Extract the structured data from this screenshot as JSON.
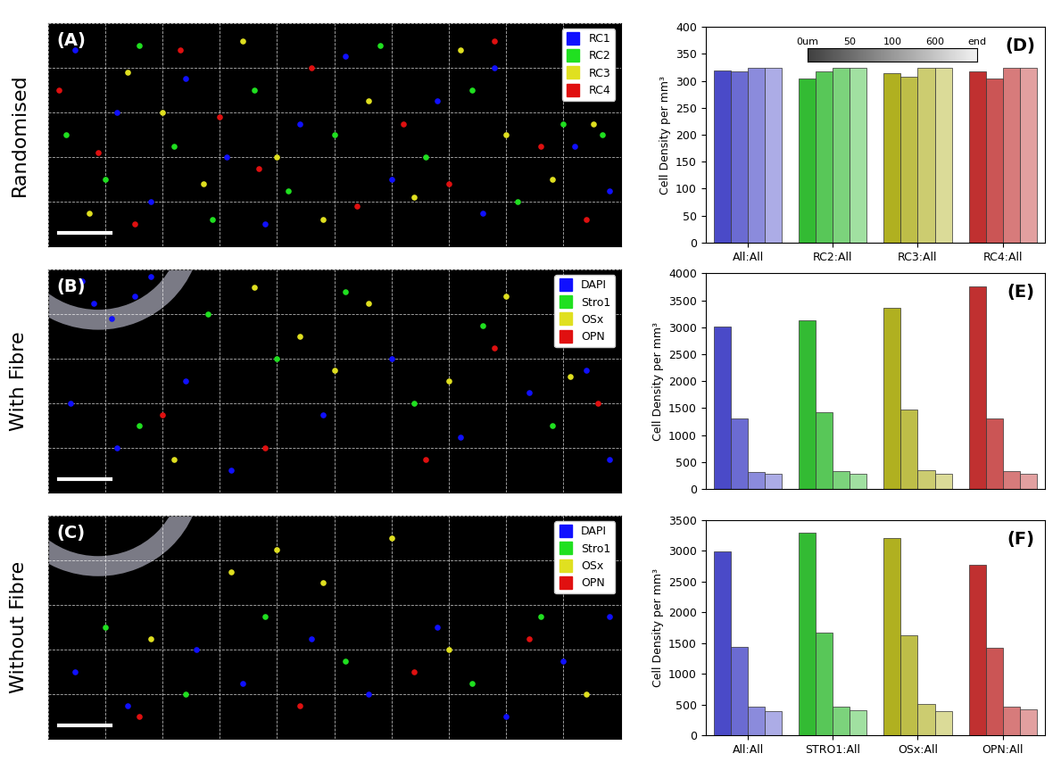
{
  "chart_data": [
    {
      "type": "scatter",
      "panel_label": "(A)",
      "row_label": "Randomised",
      "xlim": [
        0,
        250
      ],
      "ylim": [
        0,
        100
      ],
      "xticks": [
        0,
        25,
        50,
        75,
        100,
        125,
        150,
        175,
        200,
        225,
        250
      ],
      "yticks": [
        0,
        20,
        40,
        60,
        80,
        100
      ],
      "grid": true,
      "tick_labels": false,
      "legend": "upper right",
      "series": [
        {
          "name": "RC1",
          "color": "#1010ff",
          "x": [
            12,
            30,
            45,
            60,
            78,
            95,
            110,
            130,
            150,
            170,
            190,
            195,
            230,
            245
          ],
          "values": [
            88,
            60,
            20,
            75,
            40,
            10,
            55,
            85,
            30,
            65,
            15,
            80,
            45,
            25
          ]
        },
        {
          "name": "RC2",
          "color": "#20e020",
          "x": [
            8,
            25,
            40,
            55,
            72,
            90,
            105,
            125,
            145,
            165,
            185,
            205,
            225,
            242
          ],
          "values": [
            50,
            30,
            90,
            45,
            12,
            70,
            25,
            50,
            90,
            40,
            70,
            20,
            55,
            50
          ]
        },
        {
          "name": "RC3",
          "color": "#e0e020",
          "x": [
            18,
            35,
            50,
            68,
            85,
            100,
            120,
            140,
            160,
            180,
            200,
            220,
            238
          ],
          "values": [
            15,
            78,
            60,
            28,
            92,
            40,
            12,
            65,
            22,
            88,
            50,
            30,
            55
          ]
        },
        {
          "name": "RC4",
          "color": "#e01010",
          "x": [
            5,
            22,
            38,
            58,
            75,
            92,
            115,
            135,
            155,
            175,
            195,
            215,
            235
          ],
          "values": [
            70,
            42,
            10,
            88,
            58,
            35,
            80,
            18,
            55,
            28,
            92,
            45,
            12
          ]
        }
      ]
    },
    {
      "type": "scatter",
      "panel_label": "(B)",
      "row_label": "With Fibre",
      "xlim": [
        0,
        250
      ],
      "ylim": [
        0,
        100
      ],
      "xticks": [
        0,
        25,
        50,
        75,
        100,
        125,
        150,
        175,
        200,
        225,
        250
      ],
      "yticks": [
        0,
        20,
        40,
        60,
        80,
        100
      ],
      "grid": true,
      "tick_labels": false,
      "legend": "upper right",
      "series": [
        {
          "name": "DAPI",
          "color": "#1010ff",
          "x": [
            15,
            20,
            28,
            38,
            45,
            10,
            30,
            60,
            80,
            120,
            150,
            180,
            210,
            235,
            245
          ],
          "values": [
            95,
            85,
            78,
            88,
            97,
            40,
            20,
            50,
            10,
            35,
            60,
            25,
            45,
            55,
            15
          ]
        },
        {
          "name": "Stro1",
          "color": "#20e020",
          "x": [
            70,
            100,
            130,
            160,
            190,
            220,
            40
          ],
          "values": [
            80,
            60,
            90,
            40,
            75,
            30,
            30
          ]
        },
        {
          "name": "OSx",
          "color": "#e0e020",
          "x": [
            90,
            110,
            125,
            140,
            175,
            200,
            55,
            228
          ],
          "values": [
            92,
            70,
            55,
            85,
            50,
            88,
            15,
            52
          ]
        },
        {
          "name": "OPN",
          "color": "#e01010",
          "x": [
            50,
            95,
            165,
            195,
            240
          ],
          "values": [
            35,
            20,
            15,
            65,
            40
          ]
        }
      ]
    },
    {
      "type": "scatter",
      "panel_label": "(C)",
      "row_label": "Without Fibre",
      "xlim": [
        0,
        250
      ],
      "ylim": [
        0,
        100
      ],
      "xticks": [
        0,
        25,
        50,
        75,
        100,
        125,
        150,
        175,
        200,
        225,
        250
      ],
      "yticks": [
        0,
        20,
        40,
        60,
        80,
        100
      ],
      "grid": true,
      "tick_labels": false,
      "legend": "upper right",
      "series": [
        {
          "name": "DAPI",
          "color": "#1010ff",
          "x": [
            12,
            35,
            65,
            85,
            115,
            140,
            170,
            200,
            225,
            245
          ],
          "values": [
            30,
            15,
            40,
            25,
            45,
            20,
            50,
            10,
            35,
            55
          ]
        },
        {
          "name": "Stro1",
          "color": "#20e020",
          "x": [
            25,
            60,
            95,
            130,
            185,
            215
          ],
          "values": [
            50,
            20,
            55,
            35,
            25,
            55
          ]
        },
        {
          "name": "OSx",
          "color": "#e0e020",
          "x": [
            80,
            100,
            120,
            150,
            45,
            175,
            235
          ],
          "values": [
            75,
            85,
            70,
            90,
            45,
            40,
            20
          ]
        },
        {
          "name": "OPN",
          "color": "#e01010",
          "x": [
            40,
            110,
            160,
            210
          ],
          "values": [
            10,
            15,
            30,
            45
          ]
        }
      ]
    },
    {
      "type": "bar",
      "panel_label": "(D)",
      "y_label": "Cell Density per mm³",
      "shade_labels": [
        "0um",
        "50",
        "100",
        "600",
        "end"
      ],
      "categories": [
        "All:All",
        "RC2:All",
        "RC3:All",
        "RC4:All"
      ],
      "colors": [
        "#4a4ac8",
        "#33bb33",
        "#b0b020",
        "#c03030"
      ],
      "ylim": [
        0,
        400
      ],
      "yticks": [
        0,
        50,
        100,
        150,
        200,
        250,
        300,
        350,
        400
      ],
      "series": [
        {
          "values": [
            320,
            305,
            315,
            318
          ]
        },
        {
          "values": [
            318,
            318,
            307,
            305
          ]
        },
        {
          "values": [
            325,
            325,
            325,
            325
          ]
        },
        {
          "values": [
            325,
            325,
            325,
            325
          ]
        }
      ]
    },
    {
      "type": "bar",
      "panel_label": "(E)",
      "y_label": "Cell Density per mm³",
      "categories": [
        null,
        null,
        null,
        null
      ],
      "tick_labels": "y",
      "colors": [
        "#4a4ac8",
        "#33bb33",
        "#b0b020",
        "#c03030"
      ],
      "ylim": [
        0,
        4000
      ],
      "yticks": [
        0,
        500,
        1000,
        1500,
        2000,
        2500,
        3000,
        3500,
        4000
      ],
      "series": [
        {
          "values": [
            3020,
            3130,
            3360,
            3750
          ]
        },
        {
          "values": [
            1310,
            1430,
            1470,
            1310
          ]
        },
        {
          "values": [
            320,
            330,
            350,
            330
          ]
        },
        {
          "values": [
            280,
            280,
            280,
            280
          ]
        }
      ]
    },
    {
      "type": "bar",
      "panel_label": "(F)",
      "y_label": "Cell Density per mm³",
      "categories": [
        "All:All",
        "STRO1:All",
        "OSx:All",
        "OPN:All"
      ],
      "colors": [
        "#4a4ac8",
        "#33bb33",
        "#b0b020",
        "#c03030"
      ],
      "ylim": [
        0,
        3500
      ],
      "yticks": [
        0,
        500,
        1000,
        1500,
        2000,
        2500,
        3000,
        3500
      ],
      "series": [
        {
          "values": [
            2990,
            3290,
            3200,
            2770
          ]
        },
        {
          "values": [
            1440,
            1670,
            1620,
            1420
          ]
        },
        {
          "values": [
            460,
            470,
            510,
            460
          ]
        },
        {
          "values": [
            400,
            410,
            400,
            420
          ]
        }
      ]
    }
  ]
}
